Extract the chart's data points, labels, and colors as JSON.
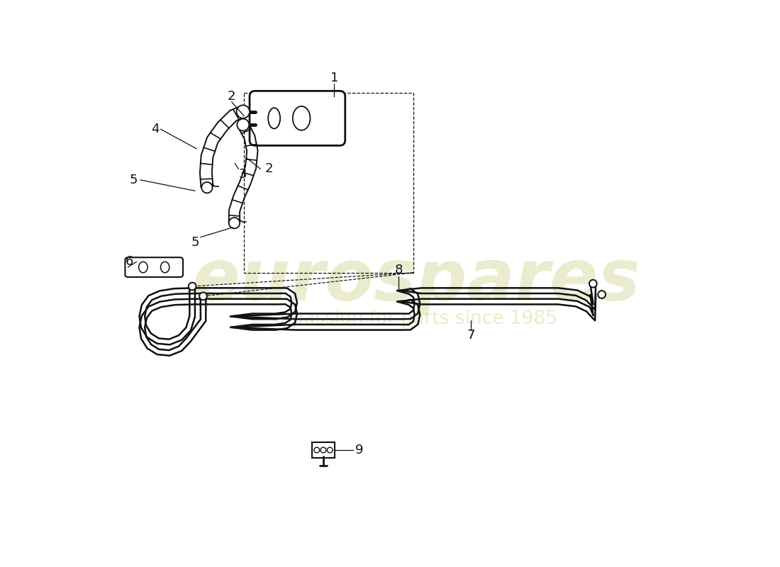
{
  "bg_color": "#ffffff",
  "line_color": "#111111",
  "lw_main": 1.6,
  "lw_pipe": 1.8,
  "lw_thin": 1.1,
  "label_fontsize": 13,
  "watermark_euro": "eurospares",
  "watermark_text": "a passion for parts since 1985",
  "watermark_color": "#d8d8a0",
  "watermark_alpha": 0.5
}
